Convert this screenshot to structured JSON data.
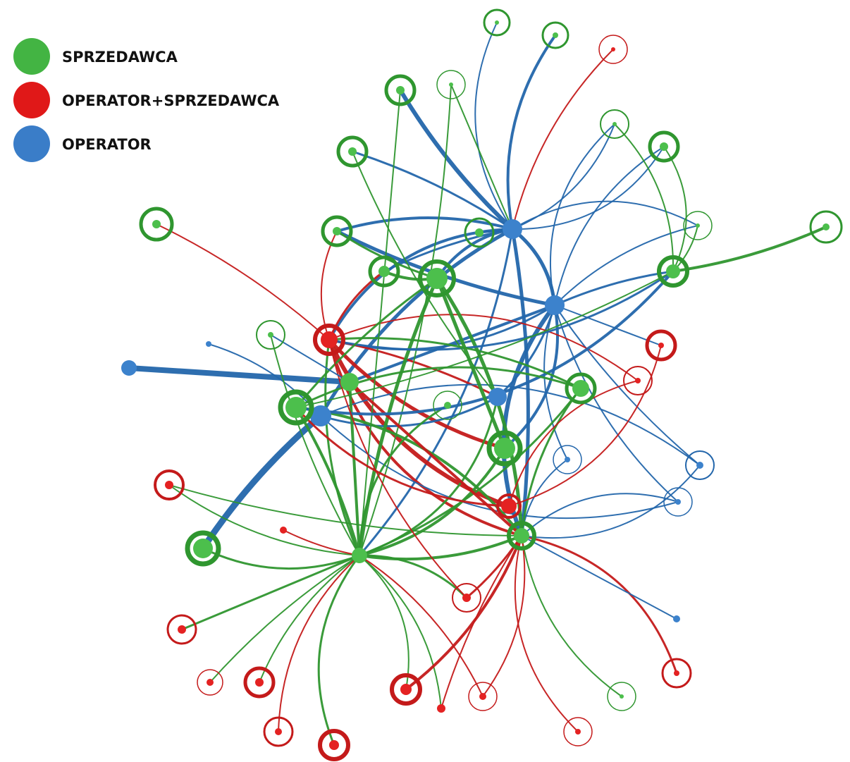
{
  "legend": {
    "items": [
      {
        "label": "SPRZEDAWCA"
      },
      {
        "label": "OPERATOR+SPRZEDAWCA"
      },
      {
        "label": "OPERATOR"
      }
    ]
  }
}
